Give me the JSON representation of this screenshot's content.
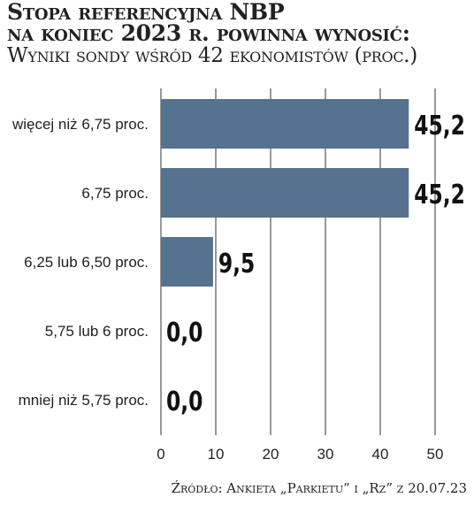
{
  "header": {
    "title_line1": "Stopa referencyjna NBP",
    "title_line2": "na koniec 2023 r. powinna wynosić:",
    "subtitle": "Wyniki sondy wśród 42 ekonomistów (proc.)"
  },
  "chart_data": {
    "type": "bar",
    "orientation": "horizontal",
    "categories": [
      "więcej niż 6,75 proc.",
      "6,75 proc.",
      "6,25 lub 6,50 proc.",
      "5,75 lub 6 proc.",
      "mniej niż 5,75 proc."
    ],
    "values": [
      45.2,
      45.2,
      9.5,
      0.0,
      0.0
    ],
    "value_labels": [
      "45,2",
      "45,2",
      "9,5",
      "0,0",
      "0,0"
    ],
    "xlim": [
      0,
      50
    ],
    "xticks": [
      0,
      10,
      20,
      30,
      40,
      50
    ],
    "xtick_labels": [
      "0",
      "10",
      "20",
      "30",
      "40",
      "50"
    ],
    "grid": "vertical",
    "bar_color": "#56728f"
  },
  "footer": {
    "source": "Źródło: Ankieta „Parkietu” i „Rz” z 20.07.23"
  }
}
